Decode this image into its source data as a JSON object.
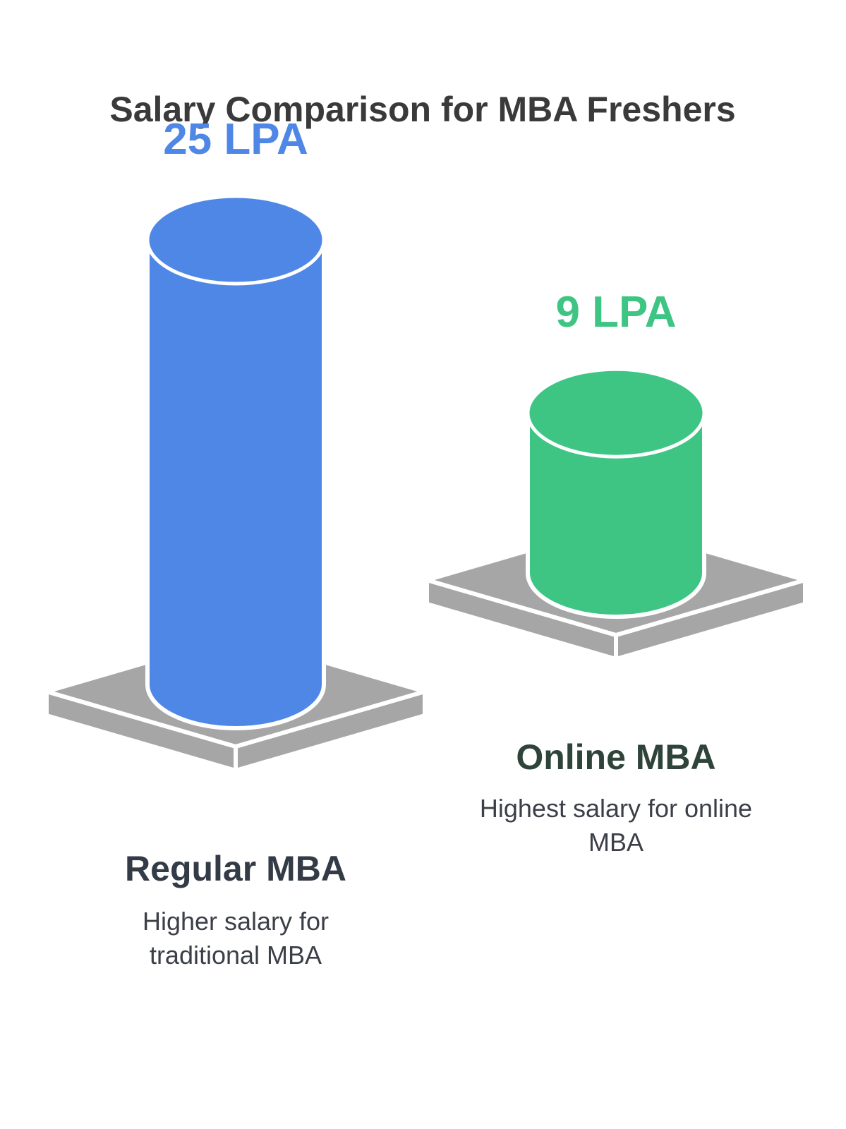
{
  "chart_data": {
    "type": "bar",
    "title": "Salary Comparison for MBA Freshers",
    "unit": "LPA",
    "categories": [
      "Regular MBA",
      "Online MBA"
    ],
    "values": [
      25,
      9
    ],
    "value_labels": [
      "25 LPA",
      "9 LPA"
    ],
    "descriptions": [
      [
        "Higher salary for",
        "traditional MBA"
      ],
      [
        "Highest salary for online",
        "MBA"
      ]
    ],
    "colors": [
      "#4f87e6",
      "#3ec584"
    ]
  },
  "colors": {
    "title": "#3a3a3a",
    "category_label": "#333b47",
    "online_label": "#2e4339",
    "description": "#3b3f47",
    "platform_top": "#a6a6a6",
    "platform_side": "#a6a6a6",
    "outline": "#ffffff"
  }
}
